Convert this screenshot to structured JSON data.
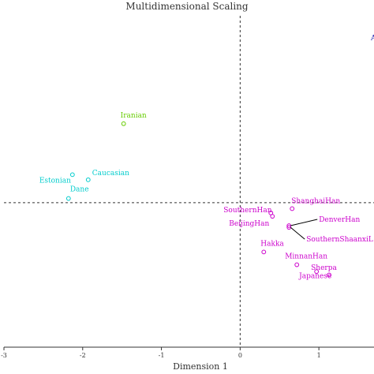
{
  "chart_data": {
    "type": "scatter",
    "title": "Multidimensional Scaling",
    "xlabel": "Dimension 1",
    "ylabel": "",
    "xlim": [
      -3,
      1.7
    ],
    "ylim": [
      -1.7,
      2.2
    ],
    "x_ticks": [
      "-3",
      "-2",
      "-1",
      "0",
      "1"
    ],
    "reference_lines": {
      "x": 0,
      "y": 0
    },
    "colors": {
      "african": "#1a1aaa",
      "middle_east": "#66cc00",
      "european": "#00cccc",
      "east_asian": "#cc00cc"
    },
    "points": [
      {
        "label": "AfricanAmer",
        "x": 1.9,
        "y": 1.95,
        "color": "african"
      },
      {
        "label": "Iranian",
        "x": -1.48,
        "y": 0.93,
        "color": "middle_east"
      },
      {
        "label": "Caucasian",
        "x": -1.93,
        "y": 0.27,
        "color": "european"
      },
      {
        "label": "Estonian",
        "x": -2.13,
        "y": 0.33,
        "color": "european"
      },
      {
        "label": "Dane",
        "x": -2.18,
        "y": 0.05,
        "color": "european"
      },
      {
        "label": "ShanghaiHan",
        "x": 0.66,
        "y": -0.07,
        "color": "east_asian"
      },
      {
        "label": "DenverHan",
        "x": 0.62,
        "y": -0.27,
        "color": "east_asian"
      },
      {
        "label": "SouthernHan",
        "x": 0.39,
        "y": -0.12,
        "color": "east_asian"
      },
      {
        "label": "BeijingHan",
        "x": 0.41,
        "y": -0.16,
        "color": "east_asian"
      },
      {
        "label": "SouthernShaanxiL",
        "x": 0.62,
        "y": -0.29,
        "color": "east_asian"
      },
      {
        "label": "Hakka",
        "x": 0.3,
        "y": -0.58,
        "color": "east_asian"
      },
      {
        "label": "MinnanHan",
        "x": 0.72,
        "y": -0.73,
        "color": "east_asian"
      },
      {
        "label": "Sherpa",
        "x": 0.97,
        "y": -0.81,
        "color": "east_asian"
      },
      {
        "label": "Japanese",
        "x": 1.13,
        "y": -0.85,
        "color": "east_asian"
      }
    ]
  }
}
